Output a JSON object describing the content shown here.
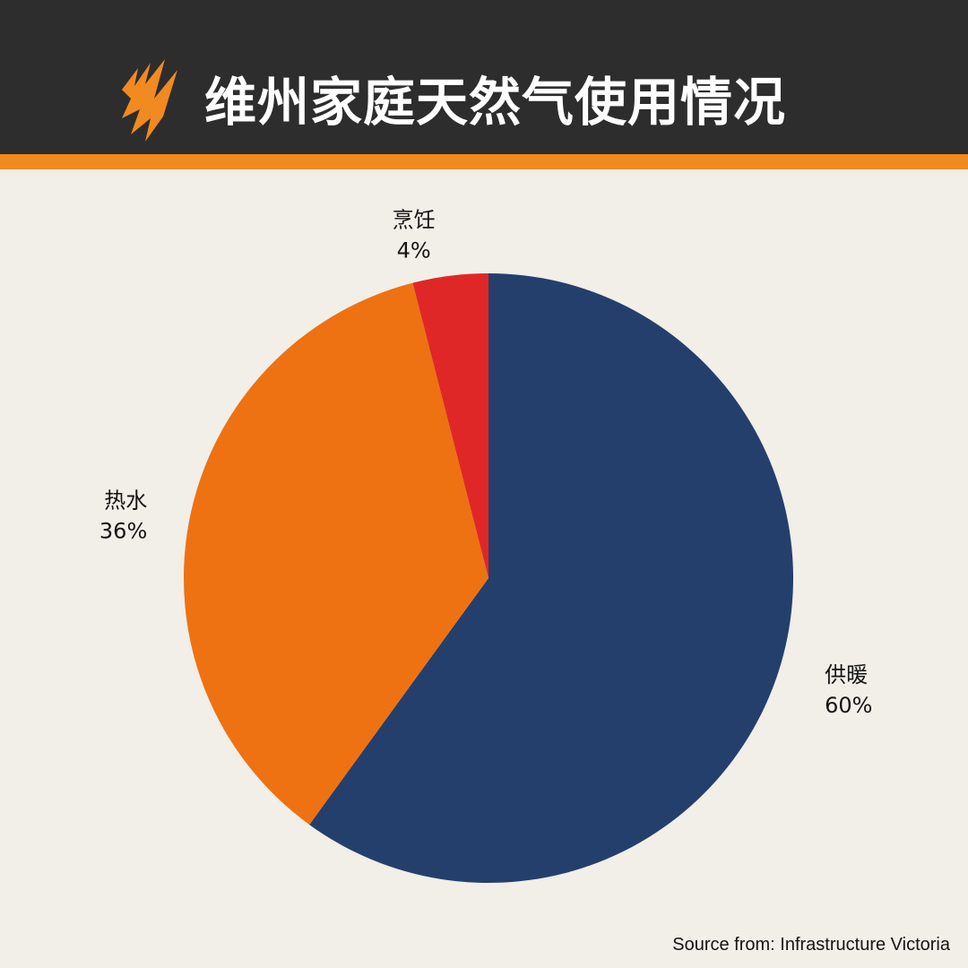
{
  "title": "维州家庭天然气使用情况",
  "logo": {
    "icon": "flame-logo-icon",
    "color": "#f08a21"
  },
  "colors": {
    "header_bg": "#2d2d2d",
    "accent": "#f08a21",
    "background": "#f2eee8"
  },
  "chart_data": {
    "type": "pie",
    "start": "12 o'clock, clockwise",
    "slices": [
      {
        "label": "供暖",
        "value": 60,
        "value_label": "60%",
        "color": "#253f6d"
      },
      {
        "label": "热水",
        "value": 36,
        "value_label": "36%",
        "color": "#ee7212"
      },
      {
        "label": "烹饪",
        "value": 4,
        "value_label": "4%",
        "color": "#e02727"
      }
    ]
  },
  "source": "Source from: Infrastructure Victoria"
}
